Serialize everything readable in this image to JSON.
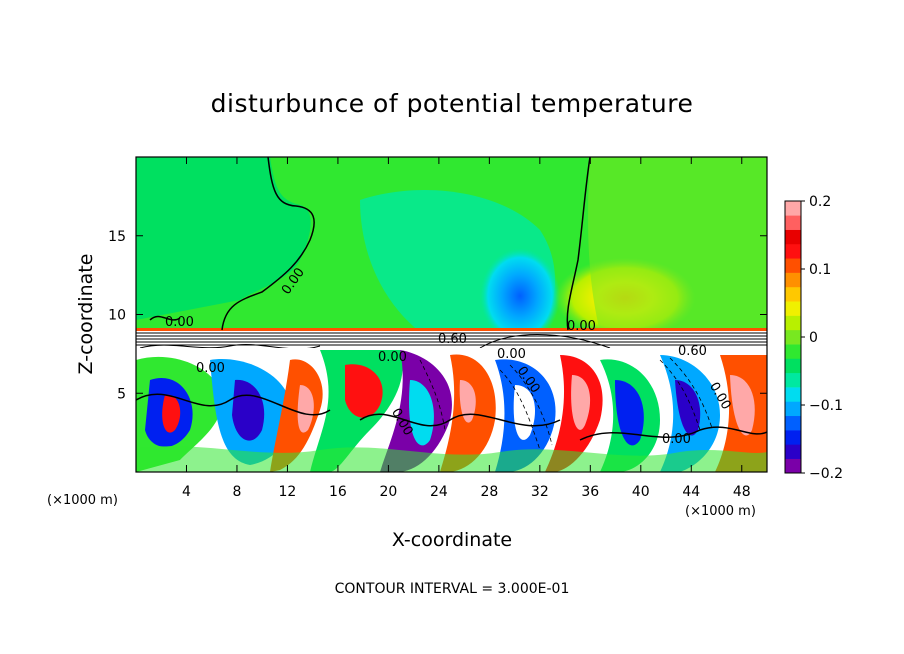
{
  "chart_data": {
    "type": "heatmap",
    "title": "disturbunce of potential temperature",
    "xlabel": "X-coordinate",
    "ylabel": "Z-coordinate",
    "x_unit": "(×1000 m)",
    "y_unit": "(×1000 m)",
    "xlim": [
      0,
      50
    ],
    "ylim": [
      0,
      20
    ],
    "x_ticks": [
      "4",
      "8",
      "12",
      "16",
      "20",
      "24",
      "28",
      "32",
      "36",
      "40",
      "44",
      "48"
    ],
    "y_ticks": [
      "5",
      "10",
      "15"
    ],
    "colorbar": {
      "range": [
        -0.2,
        0.2
      ],
      "tick_labels": [
        "0.2",
        "0.1",
        "0",
        "−0.1",
        "−0.2"
      ],
      "colors": [
        "#7a00a8",
        "#2a00c8",
        "#0020f0",
        "#0060ff",
        "#00a8ff",
        "#00dcf0",
        "#00e8a0",
        "#00e060",
        "#30e830",
        "#78e820",
        "#b8f000",
        "#f0f000",
        "#ffc800",
        "#ff9000",
        "#ff5000",
        "#ff1010",
        "#e80000",
        "#ff6060",
        "#ffa8a8"
      ]
    },
    "contour_labels": [
      "0.00",
      "0.00",
      "0.00",
      "0.00",
      "0.60",
      "0.00",
      "0.00",
      "0.60",
      "0.00",
      "0.00",
      "0.00",
      "0.00"
    ],
    "footer": "CONTOUR INTERVAL = 3.000E-01"
  }
}
